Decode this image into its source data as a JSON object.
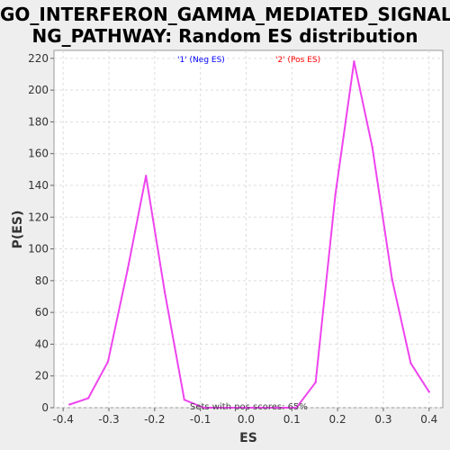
{
  "chart_data": {
    "type": "line",
    "title_line1": "GO_INTERFERON_GAMMA_MEDIATED_SIGNALI",
    "title_line2": "NG_PATHWAY: Random ES distribution",
    "xlabel": "ES",
    "ylabel": "P(ES)",
    "xlim": [
      -0.42,
      0.43
    ],
    "ylim": [
      0,
      225
    ],
    "xticks": [
      "-0.4",
      "-0.3",
      "-0.2",
      "-0.1",
      "0.0",
      "0.1",
      "0.2",
      "0.3",
      "0.4"
    ],
    "yticks": [
      "0",
      "20",
      "40",
      "60",
      "80",
      "100",
      "120",
      "140",
      "160",
      "180",
      "200",
      "220"
    ],
    "grid": true,
    "legend": {
      "neg_label": "'1' (Neg ES)",
      "pos_label": "'2' (Pos ES)",
      "neg_color": "#0000ff",
      "pos_color": "#ff0000"
    },
    "annotation": "Sets with pos scores: 65%",
    "line_color": "#ee44ee",
    "series": [
      {
        "x": [
          -0.386,
          -0.345,
          -0.302,
          -0.259,
          -0.219,
          -0.178,
          -0.135,
          -0.093,
          -0.05,
          -0.01,
          0.03,
          0.07,
          0.11,
          0.152,
          0.195,
          0.236,
          0.276,
          0.319,
          0.36,
          0.4
        ],
        "values": [
          2,
          6,
          29,
          87,
          146,
          73,
          5,
          0,
          0,
          0,
          0,
          0,
          0,
          16,
          134,
          218,
          164,
          81,
          28,
          10
        ]
      }
    ]
  }
}
